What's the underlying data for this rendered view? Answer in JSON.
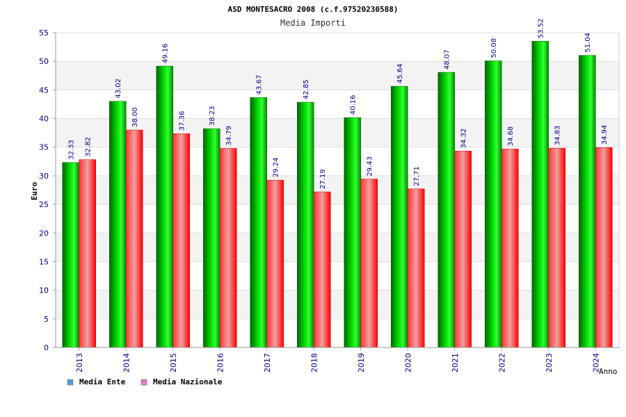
{
  "chart_data": {
    "type": "bar",
    "title": "ASD MONTESACRO 2008 (c.f.97520230588)",
    "subtitle": "Media Importi",
    "xlabel": "Anno",
    "ylabel": "Euro",
    "categories": [
      "2013",
      "2014",
      "2015",
      "2016",
      "2017",
      "2018",
      "2019",
      "2020",
      "2021",
      "2022",
      "2023",
      "2024"
    ],
    "series": [
      {
        "name": "Media Ente",
        "color": "#00c800",
        "legend_color": "#5b9bd5",
        "values": [
          32.33,
          43.02,
          49.16,
          38.23,
          43.67,
          42.85,
          40.16,
          45.64,
          48.07,
          50.08,
          53.52,
          51.04
        ],
        "labels": [
          "32.33",
          "43.02",
          "49.16",
          "38.23",
          "43.67",
          "42.85",
          "40.16",
          "45.64",
          "48.07",
          "50.08",
          "53.52",
          "51.04"
        ]
      },
      {
        "name": "Media Nazionale",
        "color": "#ff0000",
        "legend_color": "#e377c2",
        "values": [
          32.82,
          38.0,
          37.36,
          34.79,
          29.24,
          27.19,
          29.43,
          27.71,
          34.32,
          34.68,
          34.83,
          34.94
        ],
        "labels": [
          "32.82",
          "38.00",
          "37.36",
          "34.79",
          "29.24",
          "27.19",
          "29.43",
          "27.71",
          "34.32",
          "34.68",
          "34.83",
          "34.94"
        ]
      }
    ],
    "ylim": [
      0,
      55
    ],
    "yticks": [
      "0",
      "5",
      "10",
      "15",
      "20",
      "25",
      "30",
      "35",
      "40",
      "45",
      "50",
      "55"
    ],
    "grid": true,
    "legend_position": "bottom-left"
  }
}
